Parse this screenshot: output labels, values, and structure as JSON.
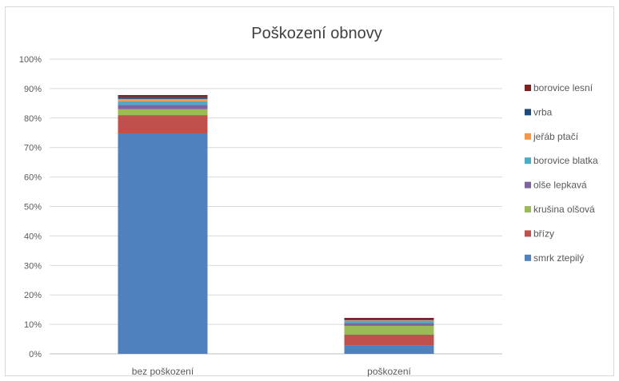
{
  "chart_data": {
    "type": "bar",
    "stacked": true,
    "title": "Poškození obnovy",
    "categories": [
      "bez poškození",
      "poškození"
    ],
    "y_ticks": [
      "0%",
      "10%",
      "20%",
      "30%",
      "40%",
      "50%",
      "60%",
      "70%",
      "80%",
      "90%",
      "100%"
    ],
    "ylim": [
      0,
      100
    ],
    "grid": true,
    "legend_position": "right",
    "series": [
      {
        "name": "smrk ztepilý",
        "color": "#4f81bd",
        "values": [
          74.8,
          2.8
        ]
      },
      {
        "name": "břízy",
        "color": "#c0504d",
        "values": [
          6.2,
          3.7
        ]
      },
      {
        "name": "krušina olšová",
        "color": "#9bbb59",
        "values": [
          2.0,
          3.0
        ]
      },
      {
        "name": "olše lepkavá",
        "color": "#8064a2",
        "values": [
          1.5,
          1.0
        ]
      },
      {
        "name": "borovice blatka",
        "color": "#4bacc6",
        "values": [
          1.2,
          0.7
        ]
      },
      {
        "name": "jeřáb ptačí",
        "color": "#f79646",
        "values": [
          0.8,
          0.2
        ]
      },
      {
        "name": "vrba",
        "color": "#1f497d",
        "values": [
          0.7,
          0.4
        ]
      },
      {
        "name": "borovice lesní",
        "color": "#7f1f1f",
        "values": [
          0.6,
          0.4
        ]
      }
    ]
  }
}
